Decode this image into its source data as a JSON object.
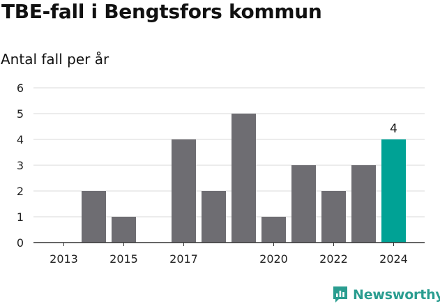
{
  "title": "TBE-fall i Bengtsfors kommun",
  "subtitle": "Antal fall per år",
  "brand": "Newsworthy",
  "colors": {
    "bar": "#6e6d72",
    "highlight": "#00a295",
    "grid": "#d9d9d9",
    "axis": "#333333",
    "brand": "#2a9d90"
  },
  "chart_data": {
    "type": "bar",
    "title": "TBE-fall i Bengtsfors kommun",
    "subtitle": "Antal fall per år",
    "xlabel": "",
    "ylabel": "",
    "categories": [
      "2013",
      "2014",
      "2015",
      "2016",
      "2017",
      "2018",
      "2019",
      "2020",
      "2021",
      "2022",
      "2023",
      "2024"
    ],
    "values": [
      0,
      2,
      1,
      0,
      4,
      2,
      5,
      1,
      3,
      2,
      3,
      4
    ],
    "x_tick_labels": [
      "2013",
      "2015",
      "2017",
      "2020",
      "2022",
      "2024"
    ],
    "highlight": {
      "category": "2024",
      "label": "4"
    },
    "ylim": [
      0,
      6
    ],
    "yticks": [
      0,
      1,
      2,
      3,
      4,
      5,
      6
    ],
    "grid": true,
    "legend": "none"
  }
}
